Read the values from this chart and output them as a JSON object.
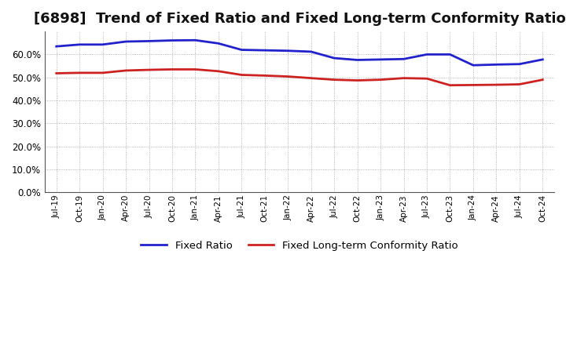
{
  "title": "[6898]  Trend of Fixed Ratio and Fixed Long-term Conformity Ratio",
  "x_labels": [
    "Jul-19",
    "Oct-19",
    "Jan-20",
    "Apr-20",
    "Jul-20",
    "Oct-20",
    "Jan-21",
    "Apr-21",
    "Jul-21",
    "Oct-21",
    "Jan-22",
    "Apr-22",
    "Jul-22",
    "Oct-22",
    "Jan-23",
    "Apr-23",
    "Jul-23",
    "Oct-23",
    "Jan-24",
    "Apr-24",
    "Jul-24",
    "Oct-24"
  ],
  "fixed_ratio": [
    0.635,
    0.643,
    0.643,
    0.656,
    0.658,
    0.661,
    0.662,
    0.648,
    0.62,
    0.618,
    0.616,
    0.612,
    0.584,
    0.576,
    0.578,
    0.58,
    0.6,
    0.6,
    0.553,
    0.556,
    0.558,
    0.578
  ],
  "fixed_lt_ratio": [
    0.518,
    0.52,
    0.52,
    0.53,
    0.533,
    0.535,
    0.535,
    0.527,
    0.511,
    0.508,
    0.504,
    0.497,
    0.49,
    0.487,
    0.49,
    0.497,
    0.495,
    0.466,
    0.467,
    0.468,
    0.47,
    0.49
  ],
  "fixed_ratio_color": "#2222cc",
  "fixed_lt_ratio_color": "#cc2222",
  "ylim": [
    0.0,
    0.7
  ],
  "yticks": [
    0.0,
    0.1,
    0.2,
    0.3,
    0.4,
    0.5,
    0.6
  ],
  "background_color": "#ffffff",
  "grid_color": "#888888",
  "title_fontsize": 13,
  "legend_fixed_ratio": "Fixed Ratio",
  "legend_fixed_lt_ratio": "Fixed Long-term Conformity Ratio"
}
